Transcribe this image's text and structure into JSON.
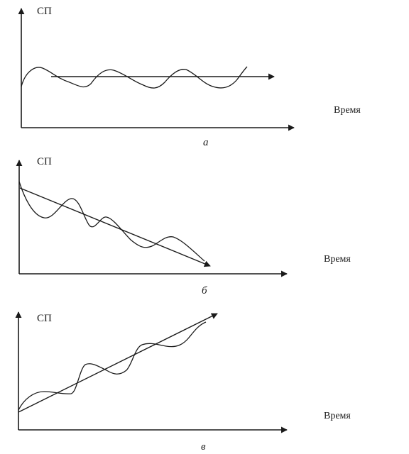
{
  "panels": [
    {
      "id": "a",
      "y_label": "СП",
      "x_label": "Время",
      "caption": "а"
    },
    {
      "id": "b",
      "y_label": "СП",
      "x_label": "Время",
      "caption": "б"
    },
    {
      "id": "c",
      "y_label": "СП",
      "x_label": "Время",
      "caption": "в"
    }
  ]
}
